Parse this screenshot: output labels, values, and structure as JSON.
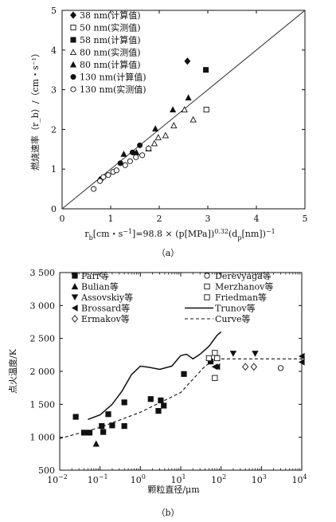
{
  "chart_data": [
    {
      "id": "a",
      "type": "scatter",
      "caption": "（a）",
      "ylabel": "燃烧速率（r_b）/（cm・s⁻¹）",
      "xlabel_parts": [
        "r",
        "b",
        "[cm・s",
        "−1",
        "]=98.8 × (p[MPa])",
        "0.32",
        "(d",
        "p",
        "[nm])",
        "−1"
      ],
      "xlim": [
        0,
        5
      ],
      "ylim": [
        0,
        5
      ],
      "xticks": [
        "0",
        "1",
        "2",
        "3",
        "4",
        "5"
      ],
      "yticks": [
        "0",
        "1",
        "2",
        "3",
        "4",
        "5"
      ],
      "diagonal_line": {
        "from": [
          0,
          0
        ],
        "to": [
          5,
          5
        ]
      },
      "legend_position": "top-left",
      "series": [
        {
          "name": "38 nm(计算值)",
          "marker": "diamond-filled",
          "points": [
            [
              2.58,
              3.72
            ]
          ]
        },
        {
          "name": "50 nm(实测值)",
          "marker": "square-open",
          "points": [
            [
              2.97,
              2.5
            ]
          ]
        },
        {
          "name": "58 nm(计算值)",
          "marker": "square-filled",
          "points": [
            [
              2.96,
              3.5
            ]
          ]
        },
        {
          "name": "80 nm(实测值)",
          "marker": "triangle-open",
          "points": [
            [
              1.78,
              1.52
            ],
            [
              1.9,
              1.65
            ],
            [
              1.98,
              1.8
            ],
            [
              2.13,
              1.85
            ],
            [
              2.3,
              2.1
            ],
            [
              2.52,
              2.5
            ],
            [
              2.7,
              2.25
            ]
          ]
        },
        {
          "name": "80 nm(计算值)",
          "marker": "triangle-filled",
          "points": [
            [
              1.27,
              1.38
            ],
            [
              1.53,
              1.42
            ],
            [
              1.92,
              2.02
            ],
            [
              2.28,
              2.5
            ],
            [
              2.6,
              2.8
            ]
          ]
        },
        {
          "name": "130 nm(计算值)",
          "marker": "circle-filled",
          "points": [
            [
              0.8,
              0.75
            ],
            [
              1.2,
              1.15
            ],
            [
              1.45,
              1.42
            ],
            [
              1.6,
              1.6
            ]
          ]
        },
        {
          "name": "130 nm(实测值)",
          "marker": "circle-open",
          "points": [
            [
              0.65,
              0.5
            ],
            [
              0.78,
              0.7
            ],
            [
              0.85,
              0.8
            ],
            [
              0.95,
              0.85
            ],
            [
              1.05,
              0.93
            ],
            [
              1.12,
              0.97
            ],
            [
              1.3,
              1.1
            ],
            [
              1.4,
              1.2
            ],
            [
              1.52,
              1.3
            ],
            [
              1.65,
              1.35
            ],
            [
              1.78,
              1.52
            ]
          ]
        }
      ]
    },
    {
      "id": "b",
      "type": "scatter",
      "caption": "（b）",
      "ylabel": "点火温度/K",
      "xlabel": "颗粒直径/μm",
      "xscale": "log",
      "xlim": [
        0.01,
        10000
      ],
      "ylim": [
        500,
        3500
      ],
      "xticks": [
        "10",
        "−2",
        "10",
        "−1",
        "10",
        "0",
        "10",
        "1",
        "10",
        "2",
        "10",
        "3",
        "10",
        "4"
      ],
      "yticks": [
        "500",
        "1 000",
        "1 500",
        "2 000",
        "2 500",
        "3 000",
        "3 500"
      ],
      "legend_position": "top",
      "series": [
        {
          "name": "Parr等",
          "marker": "square-filled",
          "points": [
            [
              0.025,
              1310
            ],
            [
              0.04,
              1070
            ],
            [
              0.055,
              1070
            ],
            [
              0.11,
              1170
            ],
            [
              0.12,
              1080
            ],
            [
              0.16,
              1350
            ],
            [
              0.2,
              1180
            ],
            [
              0.4,
              1530
            ],
            [
              0.4,
              1170
            ],
            [
              1.8,
              1580
            ],
            [
              2.8,
              1400
            ],
            [
              3.2,
              1560
            ],
            [
              3.8,
              1480
            ],
            [
              12,
              1960
            ],
            [
              55,
              2150
            ]
          ]
        },
        {
          "name": "Bulian等",
          "marker": "triangle-filled",
          "points": [
            [
              0.08,
              900
            ]
          ]
        },
        {
          "name": "Assovskiy等",
          "marker": "triangle-down-filled",
          "points": [
            [
              200,
              2270
            ],
            [
              700,
              2270
            ]
          ]
        },
        {
          "name": "Brossard等",
          "marker": "triangle-left-filled",
          "points": [
            [
              70,
              2070
            ],
            [
              80,
              2070
            ],
            [
              10000,
              2230
            ],
            [
              10000,
              2140
            ]
          ]
        },
        {
          "name": "Ermakov等",
          "marker": "diamond-open",
          "points": [
            [
              400,
              2070
            ],
            [
              650,
              2070
            ]
          ]
        },
        {
          "name": "Derevyaga等",
          "marker": "circle-open",
          "points": [
            [
              3000,
              2050
            ]
          ]
        },
        {
          "name": "Merzhanov等",
          "marker": "square-open",
          "points": [
            [
              50,
              2200
            ],
            [
              70,
              2280
            ],
            [
              80,
              2200
            ],
            [
              70,
              1900
            ]
          ]
        },
        {
          "name": "Friedman等",
          "marker": "square-open",
          "points": []
        },
        {
          "name": "Trunov等",
          "line": "solid",
          "points": [
            [
              0.05,
              1270
            ],
            [
              0.1,
              1340
            ],
            [
              0.2,
              1500
            ],
            [
              0.35,
              1700
            ],
            [
              0.6,
              1950
            ],
            [
              1.0,
              2080
            ],
            [
              1.7,
              2060
            ],
            [
              3,
              2030
            ],
            [
              6,
              2080
            ],
            [
              10,
              2240
            ],
            [
              14,
              2260
            ],
            [
              20,
              2190
            ],
            [
              30,
              2260
            ],
            [
              50,
              2380
            ],
            [
              80,
              2550
            ],
            [
              100,
              2600
            ]
          ]
        },
        {
          "name": "Curve等",
          "line": "dashed",
          "points": [
            [
              0.01,
              980
            ],
            [
              0.1,
              1150
            ],
            [
              1,
              1380
            ],
            [
              10,
              1680
            ],
            [
              40,
              2080
            ],
            [
              80,
              2190
            ],
            [
              10000,
              2190
            ]
          ]
        }
      ]
    }
  ]
}
